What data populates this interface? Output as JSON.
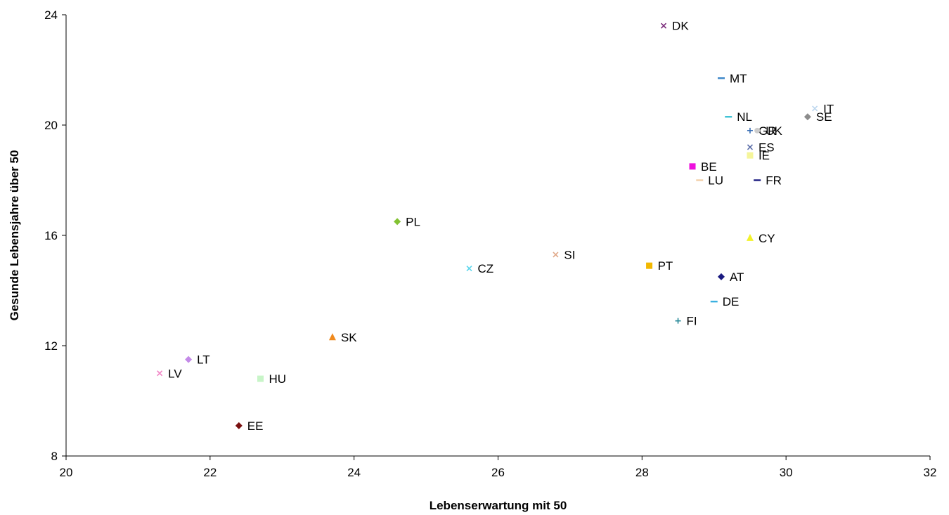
{
  "chart_data": {
    "type": "scatter",
    "xlabel": "Lebenserwartung mit 50",
    "ylabel": "Gesunde Lebensjahre über 50",
    "xlim": [
      20,
      32
    ],
    "ylim": [
      8,
      24
    ],
    "xticks": [
      "20",
      "22",
      "24",
      "26",
      "28",
      "30",
      "32"
    ],
    "yticks": [
      "8",
      "12",
      "16",
      "20",
      "24"
    ],
    "grid": false,
    "legend": "none",
    "points": [
      {
        "label": "DK",
        "x": 28.3,
        "y": 23.6,
        "marker": "x",
        "color": "#7a2a7a"
      },
      {
        "label": "MT",
        "x": 29.1,
        "y": 21.7,
        "marker": "dash",
        "color": "#3a86c8"
      },
      {
        "label": "IT",
        "x": 30.4,
        "y": 20.6,
        "marker": "x",
        "color": "#bcd6ee"
      },
      {
        "label": "SE",
        "x": 30.3,
        "y": 20.3,
        "marker": "diamond",
        "color": "#8c8c8c"
      },
      {
        "label": "NL",
        "x": 29.2,
        "y": 20.3,
        "marker": "dash",
        "color": "#3ec2d4"
      },
      {
        "label": "GR",
        "x": 29.5,
        "y": 19.8,
        "marker": "plus",
        "color": "#3a6fb5"
      },
      {
        "label": "UK",
        "x": 29.6,
        "y": 19.8,
        "marker": "circle",
        "color": "#cccccc"
      },
      {
        "label": "ES",
        "x": 29.5,
        "y": 19.2,
        "marker": "x",
        "color": "#5c6ea8"
      },
      {
        "label": "IE",
        "x": 29.5,
        "y": 18.9,
        "marker": "square",
        "color": "#f5f59a"
      },
      {
        "label": "BE",
        "x": 28.7,
        "y": 18.5,
        "marker": "square",
        "color": "#ee11dd"
      },
      {
        "label": "LU",
        "x": 28.8,
        "y": 18.0,
        "marker": "dash",
        "color": "#f2cfa8"
      },
      {
        "label": "FR",
        "x": 29.6,
        "y": 18.0,
        "marker": "dash",
        "color": "#1a1a80"
      },
      {
        "label": "PL",
        "x": 24.6,
        "y": 16.5,
        "marker": "diamond",
        "color": "#82c232"
      },
      {
        "label": "CY",
        "x": 29.5,
        "y": 15.9,
        "marker": "triangle",
        "color": "#f2f22a"
      },
      {
        "label": "SI",
        "x": 26.8,
        "y": 15.3,
        "marker": "x",
        "color": "#e0a888"
      },
      {
        "label": "PT",
        "x": 28.1,
        "y": 14.9,
        "marker": "square",
        "color": "#f2b800"
      },
      {
        "label": "CZ",
        "x": 25.6,
        "y": 14.8,
        "marker": "x",
        "color": "#5cd6ec"
      },
      {
        "label": "AT",
        "x": 29.1,
        "y": 14.5,
        "marker": "diamond",
        "color": "#1a1a80"
      },
      {
        "label": "DE",
        "x": 29.0,
        "y": 13.6,
        "marker": "dash",
        "color": "#3ab0e0"
      },
      {
        "label": "FI",
        "x": 28.5,
        "y": 12.9,
        "marker": "plus",
        "color": "#2a8a9a"
      },
      {
        "label": "SK",
        "x": 23.7,
        "y": 12.3,
        "marker": "triangle",
        "color": "#f08a1e"
      },
      {
        "label": "LT",
        "x": 21.7,
        "y": 11.5,
        "marker": "diamond",
        "color": "#c48ae8"
      },
      {
        "label": "LV",
        "x": 21.3,
        "y": 11.0,
        "marker": "x",
        "color": "#f28ac8"
      },
      {
        "label": "HU",
        "x": 22.7,
        "y": 10.8,
        "marker": "square",
        "color": "#c8f5c8"
      },
      {
        "label": "EE",
        "x": 22.4,
        "y": 9.1,
        "marker": "diamond",
        "color": "#7a1010"
      }
    ]
  }
}
